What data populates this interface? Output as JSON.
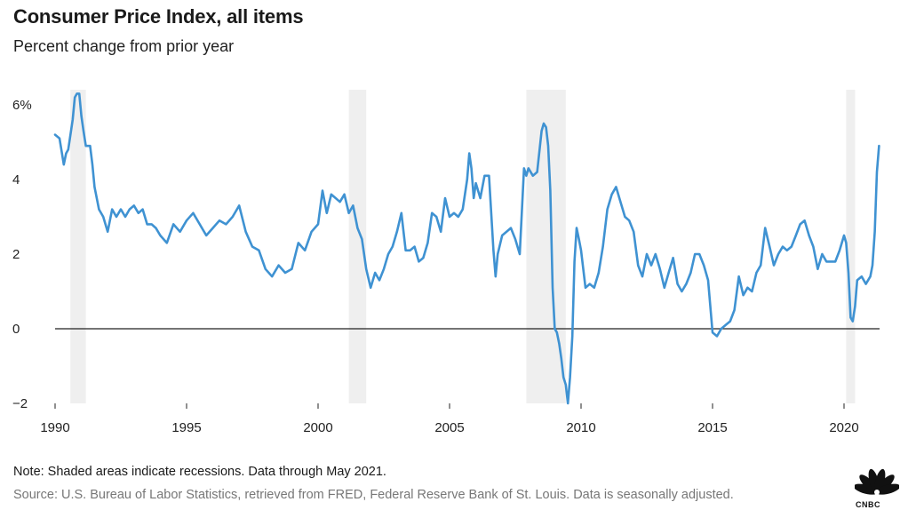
{
  "header": {
    "title": "Consumer Price Index, all items",
    "subtitle": "Percent change from prior year"
  },
  "footer": {
    "note": "Note: Shaded areas indicate recessions. Data through May 2021.",
    "source": "Source: U.S. Bureau of Labor Statistics, retrieved from FRED, Federal Reserve Bank of St. Louis. Data is seasonally adjusted.",
    "logo_text": "CNBC"
  },
  "chart_data": {
    "type": "line",
    "title": "Consumer Price Index, all items",
    "subtitle": "Percent change from prior year",
    "xlim": [
      1990,
      2021.5
    ],
    "ylim": [
      -2,
      7
    ],
    "x_ticks": [
      1990,
      1995,
      2000,
      2005,
      2010,
      2015,
      2020
    ],
    "x_tick_labels": [
      "1990",
      "1995",
      "2000",
      "2005",
      "2010",
      "2015",
      "2020"
    ],
    "y_ticks": [
      -2,
      0,
      2,
      4,
      6
    ],
    "y_tick_labels": [
      "−2",
      "0",
      "2",
      "4",
      "6%"
    ],
    "grid": false,
    "zero_line": true,
    "colors": {
      "line": "#3f92d2",
      "recession": "#efefef",
      "zero_line": "#222222"
    },
    "recessions": [
      [
        1990.58,
        1991.17
      ],
      [
        2001.17,
        2001.83
      ],
      [
        2007.92,
        2009.42
      ],
      [
        2020.08,
        2020.42
      ]
    ],
    "series": [
      {
        "x": [
          1990.0,
          1990.17,
          1990.33,
          1990.42,
          1990.5,
          1990.67,
          1990.75,
          1990.83,
          1990.92,
          1991.0,
          1991.08,
          1991.17,
          1991.33,
          1991.42,
          1991.5,
          1991.67,
          1991.83,
          1992.0,
          1992.17,
          1992.33,
          1992.5,
          1992.67,
          1992.83,
          1993.0,
          1993.17,
          1993.33,
          1993.5,
          1993.67,
          1993.83,
          1994.0,
          1994.25,
          1994.5,
          1994.75,
          1995.0,
          1995.25,
          1995.5,
          1995.75,
          1996.0,
          1996.25,
          1996.5,
          1996.75,
          1997.0,
          1997.25,
          1997.5,
          1997.75,
          1998.0,
          1998.25,
          1998.5,
          1998.75,
          1999.0,
          1999.25,
          1999.5,
          1999.75,
          2000.0,
          2000.17,
          2000.33,
          2000.5,
          2000.67,
          2000.83,
          2001.0,
          2001.17,
          2001.33,
          2001.5,
          2001.67,
          2001.83,
          2002.0,
          2002.17,
          2002.33,
          2002.5,
          2002.67,
          2002.83,
          2003.0,
          2003.17,
          2003.33,
          2003.5,
          2003.67,
          2003.83,
          2004.0,
          2004.17,
          2004.33,
          2004.5,
          2004.67,
          2004.83,
          2005.0,
          2005.17,
          2005.33,
          2005.5,
          2005.67,
          2005.75,
          2005.83,
          2005.92,
          2006.0,
          2006.17,
          2006.33,
          2006.5,
          2006.67,
          2006.75,
          2006.83,
          2007.0,
          2007.17,
          2007.33,
          2007.5,
          2007.67,
          2007.83,
          2007.92,
          2008.0,
          2008.17,
          2008.33,
          2008.5,
          2008.58,
          2008.67,
          2008.75,
          2008.83,
          2008.92,
          2009.0,
          2009.08,
          2009.17,
          2009.25,
          2009.33,
          2009.42,
          2009.5,
          2009.58,
          2009.67,
          2009.75,
          2009.83,
          2009.92,
          2010.0,
          2010.17,
          2010.33,
          2010.5,
          2010.67,
          2010.83,
          2011.0,
          2011.17,
          2011.33,
          2011.5,
          2011.67,
          2011.83,
          2012.0,
          2012.17,
          2012.33,
          2012.5,
          2012.67,
          2012.83,
          2013.0,
          2013.17,
          2013.33,
          2013.5,
          2013.67,
          2013.83,
          2014.0,
          2014.17,
          2014.33,
          2014.5,
          2014.67,
          2014.83,
          2015.0,
          2015.17,
          2015.33,
          2015.5,
          2015.67,
          2015.83,
          2016.0,
          2016.17,
          2016.33,
          2016.5,
          2016.67,
          2016.83,
          2017.0,
          2017.17,
          2017.33,
          2017.5,
          2017.67,
          2017.83,
          2018.0,
          2018.17,
          2018.33,
          2018.5,
          2018.67,
          2018.83,
          2019.0,
          2019.17,
          2019.33,
          2019.5,
          2019.67,
          2019.83,
          2020.0,
          2020.08,
          2020.17,
          2020.25,
          2020.33,
          2020.42,
          2020.5,
          2020.67,
          2020.83,
          2021.0,
          2021.08,
          2021.17,
          2021.25,
          2021.33
        ],
        "values": [
          5.2,
          5.1,
          4.4,
          4.7,
          4.8,
          5.6,
          6.2,
          6.3,
          6.3,
          5.7,
          5.3,
          4.9,
          4.9,
          4.4,
          3.8,
          3.2,
          3.0,
          2.6,
          3.2,
          3.0,
          3.2,
          3.0,
          3.2,
          3.3,
          3.1,
          3.2,
          2.8,
          2.8,
          2.7,
          2.5,
          2.3,
          2.8,
          2.6,
          2.9,
          3.1,
          2.8,
          2.5,
          2.7,
          2.9,
          2.8,
          3.0,
          3.3,
          2.6,
          2.2,
          2.1,
          1.6,
          1.4,
          1.7,
          1.5,
          1.6,
          2.3,
          2.1,
          2.6,
          2.8,
          3.7,
          3.1,
          3.6,
          3.5,
          3.4,
          3.6,
          3.1,
          3.3,
          2.7,
          2.4,
          1.6,
          1.1,
          1.5,
          1.3,
          1.6,
          2.0,
          2.2,
          2.6,
          3.1,
          2.1,
          2.1,
          2.2,
          1.8,
          1.9,
          2.3,
          3.1,
          3.0,
          2.6,
          3.5,
          3.0,
          3.1,
          3.0,
          3.2,
          4.0,
          4.7,
          4.3,
          3.5,
          3.9,
          3.5,
          4.1,
          4.1,
          2.1,
          1.4,
          2.0,
          2.5,
          2.6,
          2.7,
          2.4,
          2.0,
          4.3,
          4.1,
          4.3,
          4.1,
          4.2,
          5.3,
          5.5,
          5.4,
          4.9,
          3.7,
          1.1,
          0.0,
          -0.1,
          -0.4,
          -0.8,
          -1.3,
          -1.5,
          -2.0,
          -1.3,
          -0.2,
          1.8,
          2.7,
          2.4,
          2.1,
          1.1,
          1.2,
          1.1,
          1.5,
          2.2,
          3.2,
          3.6,
          3.8,
          3.4,
          3.0,
          2.9,
          2.6,
          1.7,
          1.4,
          2.0,
          1.7,
          2.0,
          1.6,
          1.1,
          1.5,
          1.9,
          1.2,
          1.0,
          1.2,
          1.5,
          2.0,
          2.0,
          1.7,
          1.3,
          -0.1,
          -0.2,
          0.0,
          0.1,
          0.2,
          0.5,
          1.4,
          0.9,
          1.1,
          1.0,
          1.5,
          1.7,
          2.7,
          2.2,
          1.7,
          2.0,
          2.2,
          2.1,
          2.2,
          2.5,
          2.8,
          2.9,
          2.5,
          2.2,
          1.6,
          2.0,
          1.8,
          1.8,
          1.8,
          2.1,
          2.5,
          2.3,
          1.5,
          0.3,
          0.2,
          0.6,
          1.3,
          1.4,
          1.2,
          1.4,
          1.7,
          2.6,
          4.2,
          4.9
        ]
      }
    ]
  }
}
